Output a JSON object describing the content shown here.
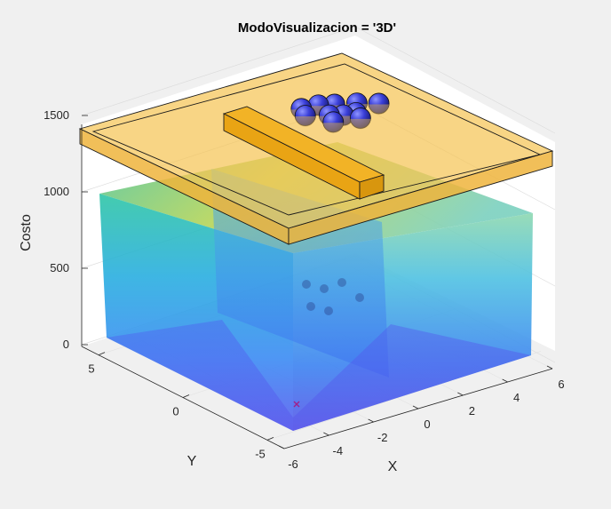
{
  "chart_data": {
    "type": "3d-surface",
    "title": "ModoVisualizacion = '3D'",
    "xlabel": "X",
    "ylabel": "Y",
    "zlabel": "Costo",
    "xlim": [
      -6,
      6
    ],
    "ylim": [
      -6,
      6
    ],
    "zlim": [
      0,
      1500
    ],
    "x_ticks": [
      -6,
      -4,
      -2,
      0,
      2,
      4,
      6
    ],
    "y_ticks": [
      -5,
      0,
      5
    ],
    "z_ticks": [
      0,
      500,
      1000,
      1500
    ],
    "grid": true,
    "colormap": [
      "#3e26a8",
      "#4a5cf0",
      "#2e93e8",
      "#1cb8c8",
      "#4fc87a",
      "#b8c84a",
      "#f2d43a"
    ],
    "surface": {
      "plateau_cost": 1050,
      "wall_x": 6,
      "wall_y": 6,
      "floor_cost": 0,
      "obstacle_valley": {
        "x": [
          -1,
          2
        ],
        "y": [
          0,
          1
        ],
        "cost": 300
      }
    },
    "plane": {
      "z": 1430,
      "color": "#f5c556"
    },
    "obstacle": {
      "x": [
        -2.5,
        2.5
      ],
      "y": [
        0.1,
        0.9
      ],
      "z": [
        1430,
        1530
      ],
      "color": "#f0b020"
    },
    "particles": [
      {
        "x": 1.2,
        "y": 2.1
      },
      {
        "x": 1.5,
        "y": 2.7
      },
      {
        "x": 2.2,
        "y": 2.6
      },
      {
        "x": 2.7,
        "y": 2.3
      },
      {
        "x": 3.4,
        "y": 1.9
      },
      {
        "x": 4.0,
        "y": 1.4
      },
      {
        "x": 1.9,
        "y": 1.6
      },
      {
        "x": 2.3,
        "y": 1.3
      },
      {
        "x": 2.8,
        "y": 1.2
      },
      {
        "x": 1.6,
        "y": 1.0
      },
      {
        "x": 2.6,
        "y": 0.7
      }
    ],
    "best_marker": {
      "x": -5.5,
      "y": -5.5,
      "z": 0,
      "symbol": "x",
      "color": "#a0208c"
    }
  }
}
